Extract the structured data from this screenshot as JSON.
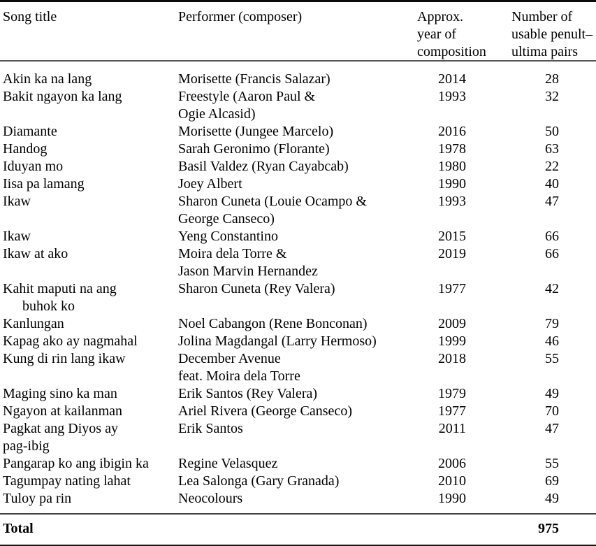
{
  "table": {
    "headers": {
      "song_title": "Song title",
      "performer": "Performer (composer)",
      "year_lines": [
        "Approx.",
        "year of",
        "composition"
      ],
      "pairs_lines": [
        "Number of",
        "usable penult–",
        "ultima pairs"
      ]
    },
    "rows": [
      {
        "title_lines": [
          "Akin ka na lang"
        ],
        "title_indent": false,
        "performer_lines": [
          "Morisette (Francis Salazar)"
        ],
        "year": "2014",
        "pairs": "28"
      },
      {
        "title_lines": [
          "Bakit ngayon ka lang"
        ],
        "title_indent": false,
        "performer_lines": [
          "Freestyle (Aaron Paul &",
          "Ogie Alcasid)"
        ],
        "year": "1993",
        "pairs": "32"
      },
      {
        "title_lines": [
          "Diamante"
        ],
        "title_indent": false,
        "performer_lines": [
          "Morisette (Jungee Marcelo)"
        ],
        "year": "2016",
        "pairs": "50"
      },
      {
        "title_lines": [
          "Handog"
        ],
        "title_indent": false,
        "performer_lines": [
          "Sarah Geronimo (Florante)"
        ],
        "year": "1978",
        "pairs": "63"
      },
      {
        "title_lines": [
          "Iduyan mo"
        ],
        "title_indent": false,
        "performer_lines": [
          "Basil Valdez (Ryan Cayabcab)"
        ],
        "year": "1980",
        "pairs": "22"
      },
      {
        "title_lines": [
          "Iisa pa lamang"
        ],
        "title_indent": false,
        "performer_lines": [
          "Joey Albert"
        ],
        "year": "1990",
        "pairs": "40"
      },
      {
        "title_lines": [
          "Ikaw"
        ],
        "title_indent": false,
        "performer_lines": [
          "Sharon Cuneta (Louie Ocampo &",
          "George Canseco)"
        ],
        "year": "1993",
        "pairs": "47"
      },
      {
        "title_lines": [
          "Ikaw"
        ],
        "title_indent": false,
        "performer_lines": [
          "Yeng Constantino"
        ],
        "year": "2015",
        "pairs": "66"
      },
      {
        "title_lines": [
          "Ikaw at ako"
        ],
        "title_indent": false,
        "performer_lines": [
          "Moira dela Torre &",
          "Jason Marvin Hernandez"
        ],
        "year": "2019",
        "pairs": "66"
      },
      {
        "title_lines": [
          "Kahit maputi na ang",
          "buhok ko"
        ],
        "title_indent": true,
        "performer_lines": [
          "Sharon Cuneta (Rey Valera)"
        ],
        "year": "1977",
        "pairs": "42"
      },
      {
        "title_lines": [
          "Kanlungan"
        ],
        "title_indent": false,
        "performer_lines": [
          "Noel Cabangon (Rene Bonconan)"
        ],
        "year": "2009",
        "pairs": "79"
      },
      {
        "title_lines": [
          "Kapag ako ay nagmahal"
        ],
        "title_indent": false,
        "performer_lines": [
          "Jolina Magdangal (Larry Hermoso)"
        ],
        "year": "1999",
        "pairs": "46"
      },
      {
        "title_lines": [
          "Kung di rin lang ikaw"
        ],
        "title_indent": false,
        "performer_lines": [
          "December Avenue",
          "feat. Moira dela Torre"
        ],
        "year": "2018",
        "pairs": "55"
      },
      {
        "title_lines": [
          "Maging sino ka man"
        ],
        "title_indent": false,
        "performer_lines": [
          "Erik Santos (Rey Valera)"
        ],
        "year": "1979",
        "pairs": "49"
      },
      {
        "title_lines": [
          "Ngayon at kailanman"
        ],
        "title_indent": false,
        "performer_lines": [
          "Ariel Rivera (George Canseco)"
        ],
        "year": "1977",
        "pairs": "70"
      },
      {
        "title_lines": [
          "Pagkat ang Diyos ay",
          "pag-ibig"
        ],
        "title_indent": false,
        "performer_lines": [
          "Erik Santos"
        ],
        "year": "2011",
        "pairs": "47"
      },
      {
        "title_lines": [
          "Pangarap ko ang ibigin ka"
        ],
        "title_indent": false,
        "performer_lines": [
          "Regine Velasquez"
        ],
        "year": "2006",
        "pairs": "55"
      },
      {
        "title_lines": [
          "Tagumpay nating lahat"
        ],
        "title_indent": false,
        "performer_lines": [
          "Lea Salonga (Gary Granada)"
        ],
        "year": "2010",
        "pairs": "69"
      },
      {
        "title_lines": [
          "Tuloy pa rin"
        ],
        "title_indent": false,
        "performer_lines": [
          "Neocolours"
        ],
        "year": "1990",
        "pairs": "49"
      }
    ],
    "total": {
      "label": "Total",
      "value": "975"
    }
  }
}
